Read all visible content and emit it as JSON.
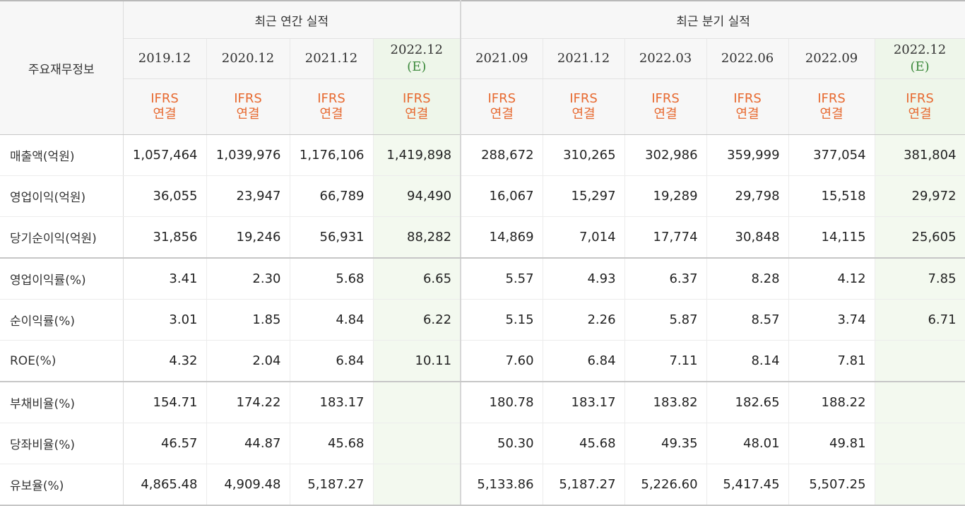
{
  "header": {
    "row_label_title": "주요재무정보",
    "annual_title": "최근 연간 실적",
    "quarterly_title": "최근 분기 실적"
  },
  "periods": [
    {
      "label": "2019.12",
      "est": ""
    },
    {
      "label": "2020.12",
      "est": ""
    },
    {
      "label": "2021.12",
      "est": ""
    },
    {
      "label": "2022.12",
      "est": "(E)"
    },
    {
      "label": "2021.09",
      "est": ""
    },
    {
      "label": "2021.12",
      "est": ""
    },
    {
      "label": "2022.03",
      "est": ""
    },
    {
      "label": "2022.06",
      "est": ""
    },
    {
      "label": "2022.09",
      "est": ""
    },
    {
      "label": "2022.12",
      "est": "(E)"
    }
  ],
  "accounting": {
    "line1": "IFRS",
    "line2": "연결"
  },
  "rows": [
    {
      "label": "매출액(억원)",
      "values": [
        "1,057,464",
        "1,039,976",
        "1,176,106",
        "1,419,898",
        "288,672",
        "310,265",
        "302,986",
        "359,999",
        "377,054",
        "381,804"
      ]
    },
    {
      "label": "영업이익(억원)",
      "values": [
        "36,055",
        "23,947",
        "66,789",
        "94,490",
        "16,067",
        "15,297",
        "19,289",
        "29,798",
        "15,518",
        "29,972"
      ]
    },
    {
      "label": "당기순이익(억원)",
      "values": [
        "31,856",
        "19,246",
        "56,931",
        "88,282",
        "14,869",
        "7,014",
        "17,774",
        "30,848",
        "14,115",
        "25,605"
      ]
    },
    {
      "label": "영업이익률(%)",
      "values": [
        "3.41",
        "2.30",
        "5.68",
        "6.65",
        "5.57",
        "4.93",
        "6.37",
        "8.28",
        "4.12",
        "7.85"
      ]
    },
    {
      "label": "순이익률(%)",
      "values": [
        "3.01",
        "1.85",
        "4.84",
        "6.22",
        "5.15",
        "2.26",
        "5.87",
        "8.57",
        "3.74",
        "6.71"
      ]
    },
    {
      "label": "ROE(%)",
      "values": [
        "4.32",
        "2.04",
        "6.84",
        "10.11",
        "7.60",
        "6.84",
        "7.11",
        "8.14",
        "7.81",
        ""
      ]
    },
    {
      "label": "부채비율(%)",
      "values": [
        "154.71",
        "174.22",
        "183.17",
        "",
        "180.78",
        "183.17",
        "183.82",
        "182.65",
        "188.22",
        ""
      ]
    },
    {
      "label": "당좌비율(%)",
      "values": [
        "46.57",
        "44.87",
        "45.68",
        "",
        "50.30",
        "45.68",
        "49.35",
        "48.01",
        "49.81",
        ""
      ]
    },
    {
      "label": "유보율(%)",
      "values": [
        "4,865.48",
        "4,909.48",
        "5,187.27",
        "",
        "5,133.86",
        "5,187.27",
        "5,226.60",
        "5,417.45",
        "5,507.25",
        ""
      ]
    }
  ]
}
